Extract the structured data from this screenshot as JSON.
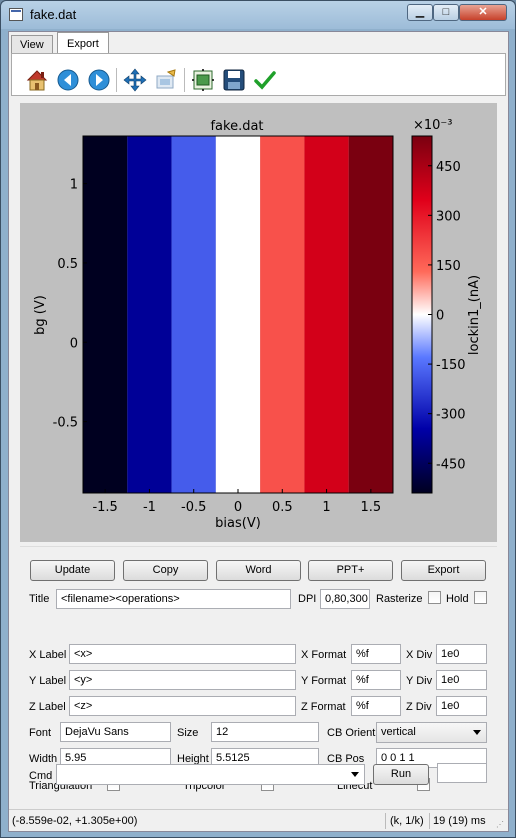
{
  "window": {
    "title": "fake.dat",
    "min_label": "▁",
    "max_label": "□",
    "close_label": "✕"
  },
  "tabs": [
    {
      "label": "View"
    },
    {
      "label": "Export"
    }
  ],
  "toolbar": {
    "icons": [
      "home-icon",
      "back-arrow-icon",
      "forward-arrow-icon",
      "pan-move-icon",
      "zoom-edit-icon",
      "configure-subplots-icon",
      "save-disk-icon",
      "checkmark-icon"
    ]
  },
  "chart_data": {
    "type": "heatmap",
    "title": "fake.dat",
    "xlabel": "bias(V)",
    "ylabel": "bg (V)",
    "colorbar_label": "lockin1_(nA)",
    "colorbar_multiplier": "×10⁻³",
    "colormap": "seismic",
    "x_centers": [
      -1.5,
      -1.0,
      -0.5,
      0.0,
      0.5,
      1.0,
      1.5
    ],
    "values": [
      -0.54,
      -0.37,
      -0.18,
      0.0,
      0.18,
      0.37,
      0.54
    ],
    "clim": [
      -0.54,
      0.54
    ],
    "xlim": [
      -1.75,
      1.75
    ],
    "ylim": [
      -0.95,
      1.3
    ],
    "x_ticks": [
      "-1.5",
      "-1",
      "-0.5",
      "0",
      "0.5",
      "1",
      "1.5"
    ],
    "y_ticks": [
      "1",
      "0.5",
      "0",
      "-0.5"
    ],
    "colorbar_ticks": [
      "450",
      "300",
      "150",
      "0",
      "-150",
      "-300",
      "-450"
    ]
  },
  "buttons": {
    "update": "Update",
    "copy": "Copy",
    "word": "Word",
    "ppt": "PPT+",
    "export": "Export",
    "run": "Run"
  },
  "form": {
    "title_label": "Title",
    "title_value": "<filename><operations>",
    "dpi_label": "DPI",
    "dpi_value": "0,80,300",
    "rasterize_label": "Rasterize",
    "hold_label": "Hold",
    "xlabel_label": "X Label",
    "xlabel_value": "<x>",
    "ylabel_label": "Y Label",
    "ylabel_value": "<y>",
    "zlabel_label": "Z Label",
    "zlabel_value": "<z>",
    "xformat_label": "X Format",
    "xformat_value": "%f",
    "yformat_label": "Y Format",
    "yformat_value": "%f",
    "zformat_label": "Z Format",
    "zformat_value": "%f",
    "xdiv_label": "X Div",
    "xdiv_value": "1e0",
    "ydiv_label": "Y Div",
    "ydiv_value": "1e0",
    "zdiv_label": "Z Div",
    "zdiv_value": "1e0",
    "font_label": "Font",
    "font_value": "DejaVu Sans",
    "size_label": "Size",
    "size_value": "12",
    "cborient_label": "CB Orient",
    "cborient_value": "vertical",
    "width_label": "Width",
    "width_value": "5.95",
    "height_label": "Height",
    "height_value": "5.5125",
    "cbpos_label": "CB Pos",
    "cbpos_value": "0 0 1 1",
    "triangulation_label": "Triangulation",
    "tripcolor_label": "Tripcolor",
    "linecut_label": "Linecut",
    "cmd_label": "Cmd",
    "cmd_value": ""
  },
  "status": {
    "coords": "(-8.559e-02, +1.305e+00)",
    "units": "(k, 1/k)",
    "timing": "19 (19) ms"
  }
}
